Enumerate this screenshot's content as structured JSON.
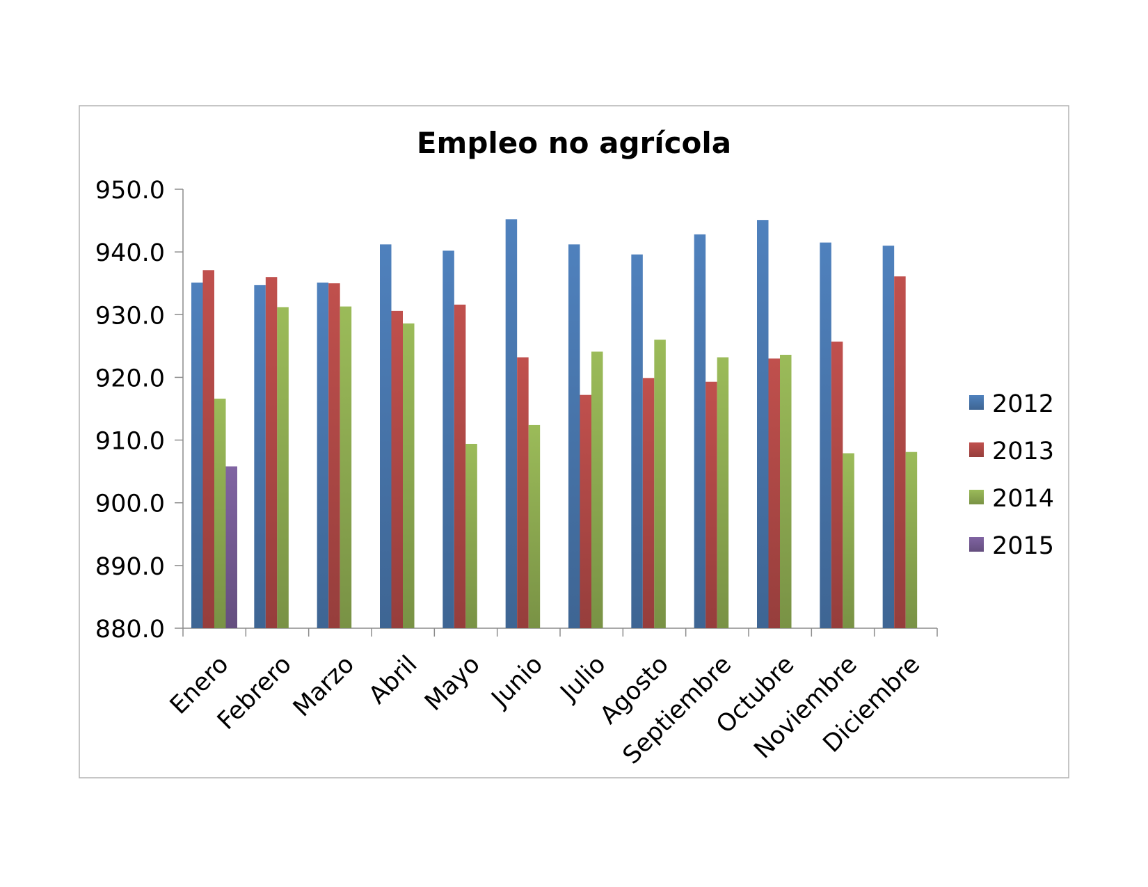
{
  "chart_data": {
    "type": "bar",
    "title": "Empleo no agrícola",
    "xlabel": "",
    "ylabel": "",
    "ylim": [
      880,
      950
    ],
    "yticks": [
      "950.0",
      "940.0",
      "930.0",
      "920.0",
      "910.0",
      "900.0",
      "890.0",
      "880.0"
    ],
    "categories": [
      "Enero",
      "Febrero",
      "Marzo",
      "Abril",
      "Mayo",
      "Junio",
      "Julio",
      "Agosto",
      "Septiembre",
      "Octubre",
      "Noviembre",
      "Diciembre"
    ],
    "series": [
      {
        "name": "2012",
        "color": "#4f81bd",
        "values": [
          935.1,
          934.7,
          935.1,
          941.2,
          940.2,
          945.2,
          941.2,
          939.6,
          942.8,
          945.1,
          941.5,
          941.0
        ]
      },
      {
        "name": "2013",
        "color": "#c0504d",
        "values": [
          937.1,
          936.0,
          935.0,
          930.6,
          931.6,
          923.2,
          917.2,
          919.9,
          919.3,
          923.0,
          925.7,
          936.1
        ]
      },
      {
        "name": "2014",
        "color": "#9bbb59",
        "values": [
          916.6,
          931.2,
          931.3,
          928.6,
          909.4,
          912.4,
          924.1,
          926.0,
          923.2,
          923.6,
          907.9,
          908.1
        ]
      },
      {
        "name": "2015",
        "color": "#8064a2",
        "values": [
          905.8,
          null,
          null,
          null,
          null,
          null,
          null,
          null,
          null,
          null,
          null,
          null
        ]
      }
    ],
    "grid": false,
    "legend_position": "right"
  }
}
